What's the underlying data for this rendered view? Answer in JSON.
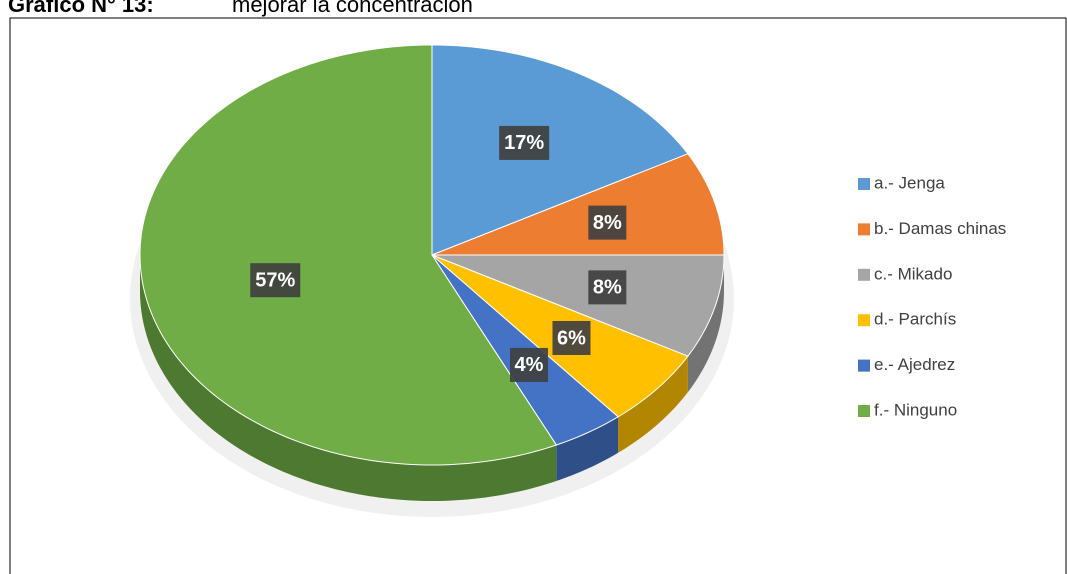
{
  "chart_data": {
    "type": "pie",
    "title": "Gráfico N° 13:",
    "subtitle": "mejorar la concentración",
    "categories": [
      "a.- Jenga",
      "b.- Damas chinas",
      "c.- Mikado",
      "d.- Parchís",
      "e.- Ajedrez",
      "f.- Ninguno"
    ],
    "values": [
      17,
      8,
      8,
      6,
      4,
      57
    ],
    "value_labels": [
      "17%",
      "8%",
      "8%",
      "6%",
      "4%",
      "57%"
    ],
    "colors": [
      "#5b9bd5",
      "#ed7d31",
      "#a5a5a5",
      "#ffc000",
      "#4472c4",
      "#70ad47"
    ],
    "legend": "right"
  }
}
